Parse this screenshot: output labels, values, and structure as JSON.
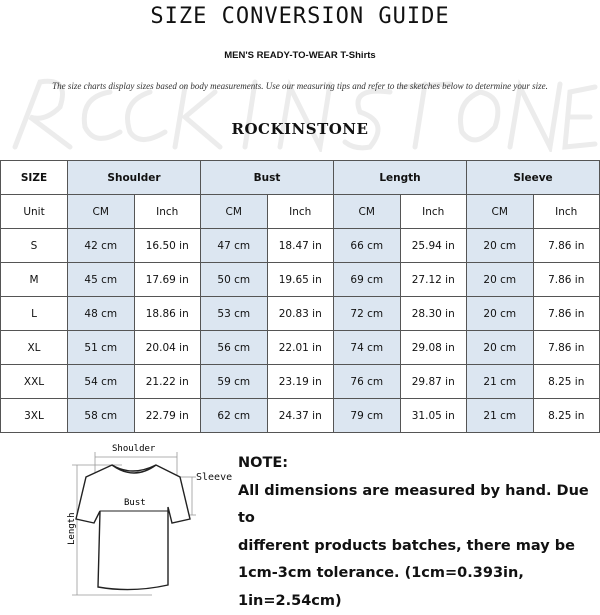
{
  "title": "SIZE CONVERSION GUIDE",
  "subtitle": "MEN'S READY-TO-WEAR T-Shirts",
  "description": "The size charts display sizes based on body measurements.  Use our measuring tips and refer to the sketches below to determine your size.",
  "watermark": "ROCKINSTONE",
  "brand": "ROCKINSTONE",
  "colors": {
    "header_fill": "#dce6f1",
    "border": "#555555"
  },
  "table": {
    "size_header": "SIZE",
    "unit_label": "Unit",
    "groups": [
      "Shoulder",
      "Bust",
      "Length",
      "Sleeve"
    ],
    "units": [
      "CM",
      "Inch",
      "CM",
      "Inch",
      "CM",
      "Inch",
      "CM",
      "Inch"
    ],
    "rows": [
      {
        "size": "S",
        "values": [
          "42 cm",
          "16.50 in",
          "47 cm",
          "18.47  in",
          "66 cm",
          "25.94  in",
          "20 cm",
          "7.86  in"
        ]
      },
      {
        "size": "M",
        "values": [
          "45 cm",
          "17.69  in",
          "50 cm",
          "19.65  in",
          "69 cm",
          "27.12  in",
          "20 cm",
          "7.86  in"
        ]
      },
      {
        "size": "L",
        "values": [
          "48 cm",
          "18.86  in",
          "53 cm",
          "20.83  in",
          "72 cm",
          "28.30  in",
          "20 cm",
          "7.86  in"
        ]
      },
      {
        "size": "XL",
        "values": [
          "51 cm",
          "20.04  in",
          "56 cm",
          "22.01  in",
          "74 cm",
          "29.08  in",
          "20 cm",
          "7.86  in"
        ]
      },
      {
        "size": "XXL",
        "values": [
          "54 cm",
          "21.22  in",
          "59 cm",
          "23.19  in",
          "76 cm",
          "29.87  in",
          "21 cm",
          "8.25  in"
        ]
      },
      {
        "size": "3XL",
        "values": [
          "58 cm",
          "22.79  in",
          "62 cm",
          "24.37  in",
          "79 cm",
          "31.05  in",
          "21 cm",
          "8.25  in"
        ]
      }
    ]
  },
  "sketch": {
    "shoulder": "Shoulder",
    "bust": "Bust",
    "sleeve": "Sleeve",
    "length": "Length"
  },
  "note": {
    "heading": "NOTE:",
    "lines": [
      "All dimensions are measured by hand. Due to",
      "different products batches, there may be",
      "1cm-3cm tolerance. (1cm=0.393in, 1in=2.54cm)"
    ]
  }
}
